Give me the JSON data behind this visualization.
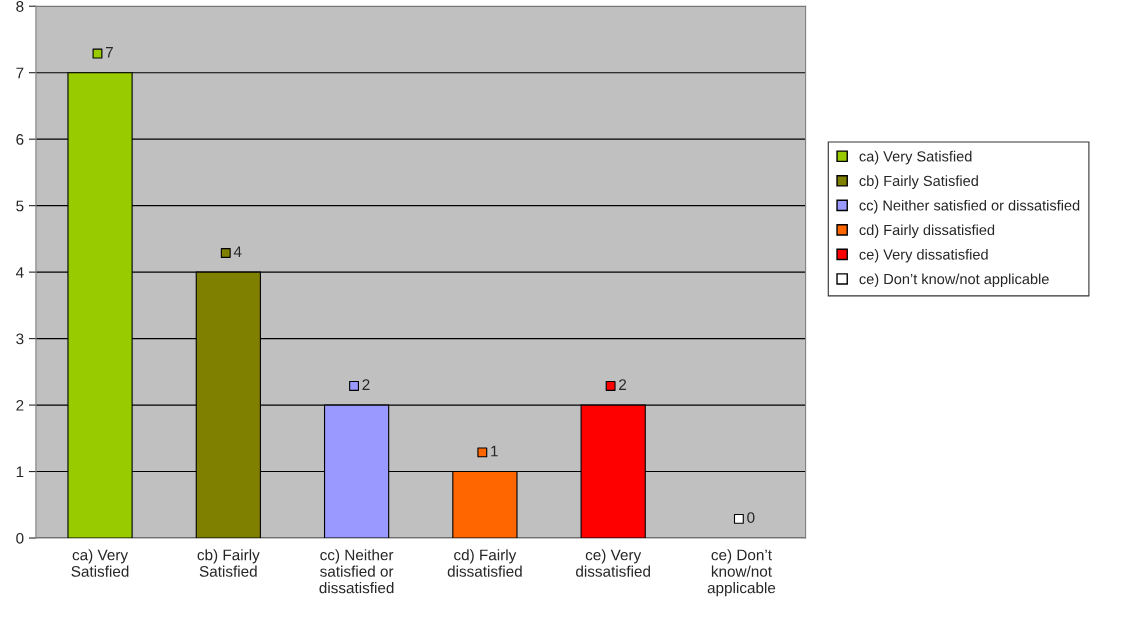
{
  "chart_data": {
    "type": "bar",
    "categories": [
      "ca) Very Satisfied",
      "cb) Fairly Satisfied",
      "cc) Neither satisfied or dissatisfied",
      "cd) Fairly dissatisfied",
      "ce) Very dissatisfied",
      "ce) Don’t know/not applicable"
    ],
    "series": [
      {
        "name": "ca) Very Satisfied",
        "color": "#99cc00",
        "values": [
          7,
          null,
          null,
          null,
          null,
          null
        ]
      },
      {
        "name": "cb) Fairly Satisfied",
        "color": "#808000",
        "values": [
          null,
          4,
          null,
          null,
          null,
          null
        ]
      },
      {
        "name": "cc) Neither satisfied or dissatisfied",
        "color": "#9999ff",
        "values": [
          null,
          null,
          2,
          null,
          null,
          null
        ]
      },
      {
        "name": "cd) Fairly dissatisfied",
        "color": "#ff6600",
        "values": [
          null,
          null,
          null,
          1,
          null,
          null
        ]
      },
      {
        "name": "ce) Very dissatisfied",
        "color": "#ff0000",
        "values": [
          null,
          null,
          null,
          null,
          2,
          null
        ]
      },
      {
        "name": "ce) Don’t know/not applicable",
        "color": "#ffffff",
        "values": [
          null,
          null,
          null,
          null,
          null,
          0
        ]
      }
    ],
    "ylim": [
      0,
      8
    ],
    "yticks": [
      0,
      1,
      2,
      3,
      4,
      5,
      6,
      7,
      8
    ],
    "grid": "y",
    "legend": "right",
    "data_labels": true
  }
}
